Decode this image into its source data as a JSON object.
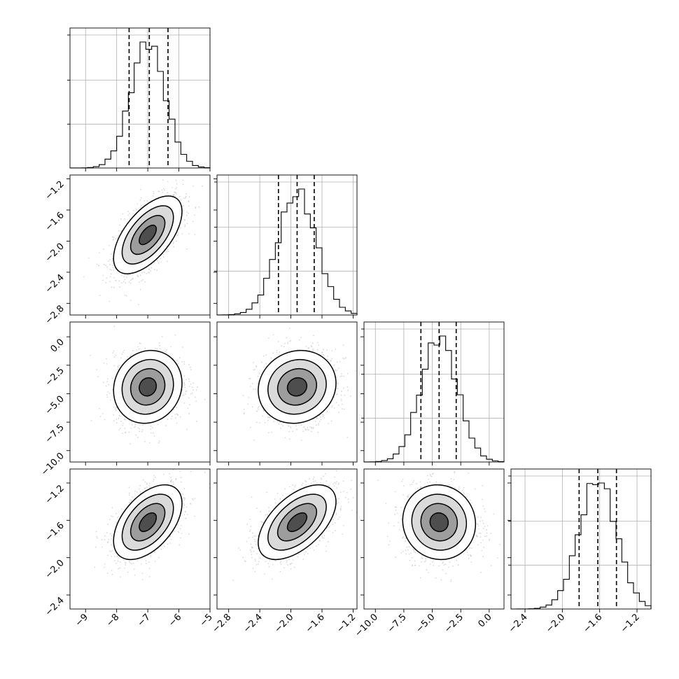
{
  "chart_data": {
    "type": "corner",
    "grid": true,
    "params": [
      {
        "mean": -7.0,
        "std": 0.55,
        "range": [
          -9.5,
          -5.0
        ],
        "ticks": [
          -9,
          -8,
          -7,
          -6,
          -5
        ],
        "tick_labels": [
          "−9",
          "−8",
          "−7",
          "−6",
          "−5"
        ],
        "quantiles": [
          -7.6,
          -6.95,
          -6.35
        ]
      },
      {
        "mean": -1.92,
        "std": 0.25,
        "range": [
          -2.95,
          -1.15
        ],
        "ticks": [
          -2.8,
          -2.4,
          -2.0,
          -1.6,
          -1.2
        ],
        "tick_labels": [
          "−2.8",
          "−2.4",
          "−2.0",
          "−1.6",
          "−1.2"
        ],
        "quantiles": [
          -2.16,
          -1.92,
          -1.7
        ]
      },
      {
        "mean": -4.4,
        "std": 1.6,
        "range": [
          -11.0,
          1.3
        ],
        "ticks": [
          -10.0,
          -7.5,
          -5.0,
          -2.5,
          0.0
        ],
        "tick_labels": [
          "−10.0",
          "−7.5",
          "−5.0",
          "−2.5",
          "0.0"
        ],
        "quantiles": [
          -6.0,
          -4.4,
          -2.9
        ]
      },
      {
        "mean": -1.62,
        "std": 0.2,
        "range": [
          -2.55,
          -1.05
        ],
        "ticks": [
          -2.4,
          -2.0,
          -1.6,
          -1.2
        ],
        "tick_labels": [
          "−2.4",
          "−2.0",
          "−1.6",
          "−1.2"
        ],
        "quantiles": [
          -1.82,
          -1.62,
          -1.42
        ]
      }
    ],
    "correlations": {
      "1-0": 0.6,
      "2-0": 0.1,
      "2-1": 0.1,
      "3-0": 0.5,
      "3-1": 0.55,
      "3-2": -0.05
    },
    "contour_levels_sigma": [
      0.5,
      1.0,
      1.5,
      2.0
    ]
  }
}
